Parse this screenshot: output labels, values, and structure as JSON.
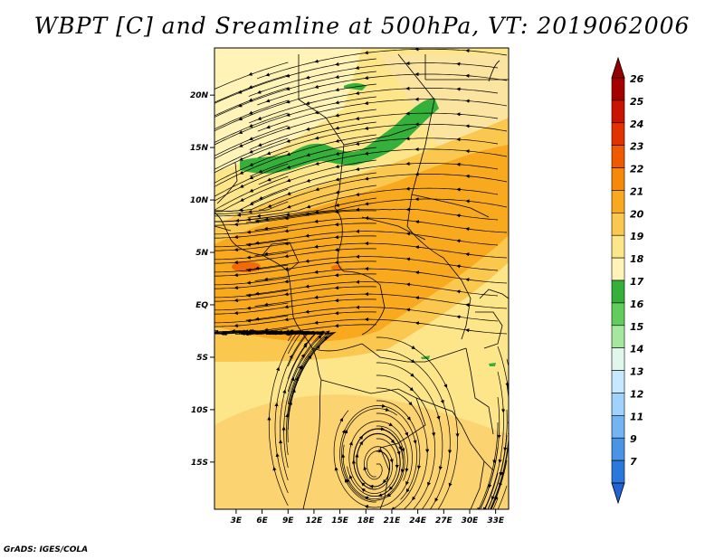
{
  "title": "WBPT [C] and Sreamline at 500hPa, VT: 2019062006",
  "credit": "GrADS: IGES/COLA",
  "map": {
    "lat_labels": [
      "20N",
      "15N",
      "10N",
      "5N",
      "EQ",
      "5S",
      "10S",
      "15S"
    ],
    "lat_values": [
      20,
      15,
      10,
      5,
      0,
      -5,
      -10,
      -15
    ],
    "lon_labels": [
      "3E",
      "6E",
      "9E",
      "12E",
      "15E",
      "18E",
      "21E",
      "24E",
      "27E",
      "30E",
      "33E"
    ],
    "lon_values": [
      3,
      6,
      9,
      12,
      15,
      18,
      21,
      24,
      27,
      30,
      33
    ],
    "lat_range": [
      -19.5,
      24.5
    ],
    "lon_range": [
      0.5,
      34.5
    ]
  },
  "colorbar": {
    "labels": [
      "26",
      "25",
      "24",
      "23",
      "22",
      "21",
      "20",
      "19",
      "18",
      "17",
      "16",
      "15",
      "14",
      "13",
      "12",
      "11",
      "9",
      "7"
    ],
    "colors": [
      "#a50000",
      "#c81400",
      "#e23200",
      "#ef5a00",
      "#f58a0a",
      "#f8a91e",
      "#fbc84f",
      "#fde58a",
      "#fff3b8",
      "#35b03a",
      "#62cc5c",
      "#a6e7a0",
      "#e1f7ec",
      "#c8e8ff",
      "#a0d2fb",
      "#75b4f2",
      "#4a94e6",
      "#2b78dc"
    ],
    "top_arrow_color": "#960000",
    "bottom_arrow_color": "#1f64d2"
  }
}
